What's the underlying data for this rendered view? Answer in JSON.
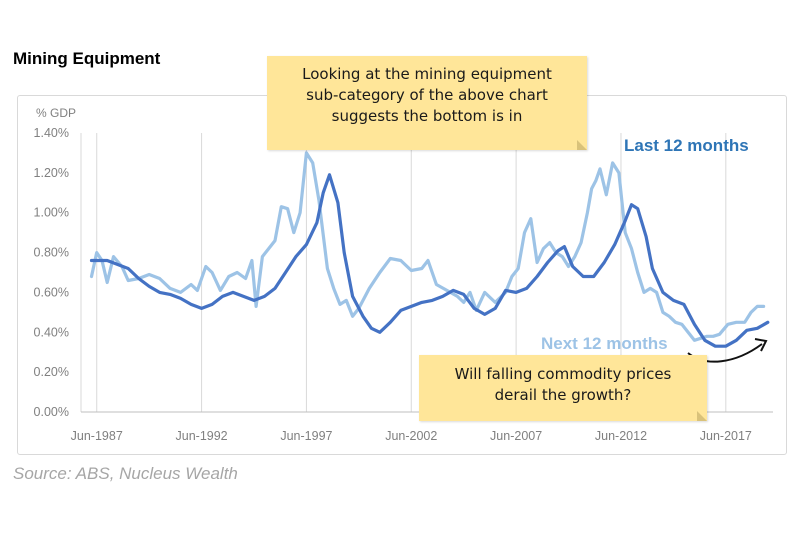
{
  "title": "Mining Equipment",
  "source": "Source: ABS, Nucleus Wealth",
  "annotations": {
    "top_note": [
      "Looking at the mining equipment",
      "sub-category of the above chart",
      "suggests the bottom is in"
    ],
    "bottom_note": [
      "Will falling commodity prices",
      "derail the growth?"
    ]
  },
  "chart_data": {
    "type": "line",
    "ylabel": "% GDP",
    "xlabel": "",
    "ylim": [
      0,
      1.4
    ],
    "y_ticks": [
      "0.00%",
      "0.20%",
      "0.40%",
      "0.60%",
      "0.80%",
      "1.00%",
      "1.20%",
      "1.40%"
    ],
    "x_ticks": [
      "Jun-1987",
      "Jun-1992",
      "Jun-1997",
      "Jun-2002",
      "Jun-2007",
      "Jun-2012",
      "Jun-2017"
    ],
    "grid": "vertical",
    "series": [
      {
        "name": "Last 12 months",
        "color": "#4472c4",
        "points": [
          [
            1987.25,
            0.76
          ],
          [
            1988,
            0.76
          ],
          [
            1988.5,
            0.74
          ],
          [
            1989,
            0.72
          ],
          [
            1989.5,
            0.67
          ],
          [
            1990,
            0.63
          ],
          [
            1990.5,
            0.6
          ],
          [
            1991,
            0.59
          ],
          [
            1991.5,
            0.57
          ],
          [
            1992,
            0.54
          ],
          [
            1992.5,
            0.52
          ],
          [
            1993,
            0.54
          ],
          [
            1993.5,
            0.58
          ],
          [
            1994,
            0.6
          ],
          [
            1994.5,
            0.58
          ],
          [
            1995,
            0.56
          ],
          [
            1995.5,
            0.58
          ],
          [
            1996,
            0.62
          ],
          [
            1996.5,
            0.7
          ],
          [
            1997,
            0.78
          ],
          [
            1997.5,
            0.84
          ],
          [
            1998,
            0.95
          ],
          [
            1998.3,
            1.1
          ],
          [
            1998.6,
            1.19
          ],
          [
            1999,
            1.05
          ],
          [
            1999.3,
            0.8
          ],
          [
            1999.7,
            0.58
          ],
          [
            2000.2,
            0.48
          ],
          [
            2000.6,
            0.42
          ],
          [
            2001,
            0.4
          ],
          [
            2001.5,
            0.45
          ],
          [
            2002,
            0.51
          ],
          [
            2002.5,
            0.53
          ],
          [
            2003,
            0.55
          ],
          [
            2003.5,
            0.56
          ],
          [
            2004,
            0.58
          ],
          [
            2004.5,
            0.61
          ],
          [
            2005,
            0.59
          ],
          [
            2005.5,
            0.52
          ],
          [
            2006,
            0.49
          ],
          [
            2006.5,
            0.52
          ],
          [
            2007,
            0.61
          ],
          [
            2007.5,
            0.6
          ],
          [
            2008,
            0.62
          ],
          [
            2008.5,
            0.68
          ],
          [
            2009,
            0.75
          ],
          [
            2009.5,
            0.81
          ],
          [
            2009.8,
            0.83
          ],
          [
            2010.2,
            0.73
          ],
          [
            2010.7,
            0.68
          ],
          [
            2011.2,
            0.68
          ],
          [
            2011.7,
            0.75
          ],
          [
            2012.2,
            0.84
          ],
          [
            2012.7,
            0.96
          ],
          [
            2013,
            1.04
          ],
          [
            2013.3,
            1.02
          ],
          [
            2013.7,
            0.88
          ],
          [
            2014,
            0.72
          ],
          [
            2014.5,
            0.6
          ],
          [
            2015,
            0.56
          ],
          [
            2015.5,
            0.54
          ],
          [
            2016,
            0.44
          ],
          [
            2016.5,
            0.36
          ],
          [
            2017,
            0.33
          ],
          [
            2017.5,
            0.33
          ],
          [
            2018,
            0.36
          ],
          [
            2018.5,
            0.41
          ],
          [
            2019,
            0.42
          ],
          [
            2019.5,
            0.45
          ]
        ]
      },
      {
        "name": "Next 12 months",
        "color": "#9dc3e6",
        "points": [
          [
            1987.25,
            0.68
          ],
          [
            1987.5,
            0.8
          ],
          [
            1987.75,
            0.76
          ],
          [
            1988,
            0.65
          ],
          [
            1988.3,
            0.78
          ],
          [
            1988.7,
            0.73
          ],
          [
            1989,
            0.66
          ],
          [
            1989.5,
            0.67
          ],
          [
            1990,
            0.69
          ],
          [
            1990.5,
            0.67
          ],
          [
            1991,
            0.62
          ],
          [
            1991.5,
            0.6
          ],
          [
            1992,
            0.64
          ],
          [
            1992.3,
            0.61
          ],
          [
            1992.7,
            0.73
          ],
          [
            1993,
            0.7
          ],
          [
            1993.4,
            0.61
          ],
          [
            1993.8,
            0.68
          ],
          [
            1994.2,
            0.7
          ],
          [
            1994.6,
            0.67
          ],
          [
            1994.9,
            0.76
          ],
          [
            1995.1,
            0.53
          ],
          [
            1995.4,
            0.78
          ],
          [
            1995.7,
            0.82
          ],
          [
            1996,
            0.86
          ],
          [
            1996.3,
            1.03
          ],
          [
            1996.6,
            1.02
          ],
          [
            1996.9,
            0.9
          ],
          [
            1997.2,
            1.0
          ],
          [
            1997.5,
            1.3
          ],
          [
            1997.8,
            1.25
          ],
          [
            1998.1,
            1.06
          ],
          [
            1998.5,
            0.72
          ],
          [
            1998.8,
            0.62
          ],
          [
            1999.1,
            0.54
          ],
          [
            1999.4,
            0.56
          ],
          [
            1999.7,
            0.48
          ],
          [
            2000,
            0.52
          ],
          [
            2000.5,
            0.62
          ],
          [
            2001,
            0.7
          ],
          [
            2001.5,
            0.77
          ],
          [
            2002,
            0.76
          ],
          [
            2002.5,
            0.71
          ],
          [
            2003,
            0.72
          ],
          [
            2003.3,
            0.76
          ],
          [
            2003.7,
            0.64
          ],
          [
            2004.2,
            0.61
          ],
          [
            2004.7,
            0.58
          ],
          [
            2005,
            0.55
          ],
          [
            2005.3,
            0.6
          ],
          [
            2005.6,
            0.51
          ],
          [
            2006,
            0.6
          ],
          [
            2006.5,
            0.55
          ],
          [
            2007,
            0.6
          ],
          [
            2007.3,
            0.68
          ],
          [
            2007.6,
            0.72
          ],
          [
            2007.9,
            0.9
          ],
          [
            2008.2,
            0.97
          ],
          [
            2008.5,
            0.75
          ],
          [
            2008.8,
            0.82
          ],
          [
            2009.1,
            0.85
          ],
          [
            2009.4,
            0.8
          ],
          [
            2009.7,
            0.78
          ],
          [
            2010,
            0.73
          ],
          [
            2010.3,
            0.78
          ],
          [
            2010.6,
            0.85
          ],
          [
            2010.9,
            1.0
          ],
          [
            2011.1,
            1.12
          ],
          [
            2011.3,
            1.16
          ],
          [
            2011.5,
            1.22
          ],
          [
            2011.8,
            1.09
          ],
          [
            2012.1,
            1.25
          ],
          [
            2012.4,
            1.2
          ],
          [
            2012.7,
            0.9
          ],
          [
            2013,
            0.82
          ],
          [
            2013.3,
            0.7
          ],
          [
            2013.6,
            0.6
          ],
          [
            2013.9,
            0.62
          ],
          [
            2014.2,
            0.6
          ],
          [
            2014.5,
            0.5
          ],
          [
            2014.8,
            0.48
          ],
          [
            2015.1,
            0.45
          ],
          [
            2015.4,
            0.44
          ],
          [
            2015.7,
            0.4
          ],
          [
            2016,
            0.36
          ],
          [
            2016.3,
            0.37
          ],
          [
            2016.6,
            0.38
          ],
          [
            2016.9,
            0.38
          ],
          [
            2017.2,
            0.39
          ],
          [
            2017.6,
            0.44
          ],
          [
            2018,
            0.45
          ],
          [
            2018.4,
            0.45
          ],
          [
            2018.7,
            0.5
          ],
          [
            2019,
            0.53
          ],
          [
            2019.3,
            0.53
          ]
        ]
      }
    ]
  }
}
